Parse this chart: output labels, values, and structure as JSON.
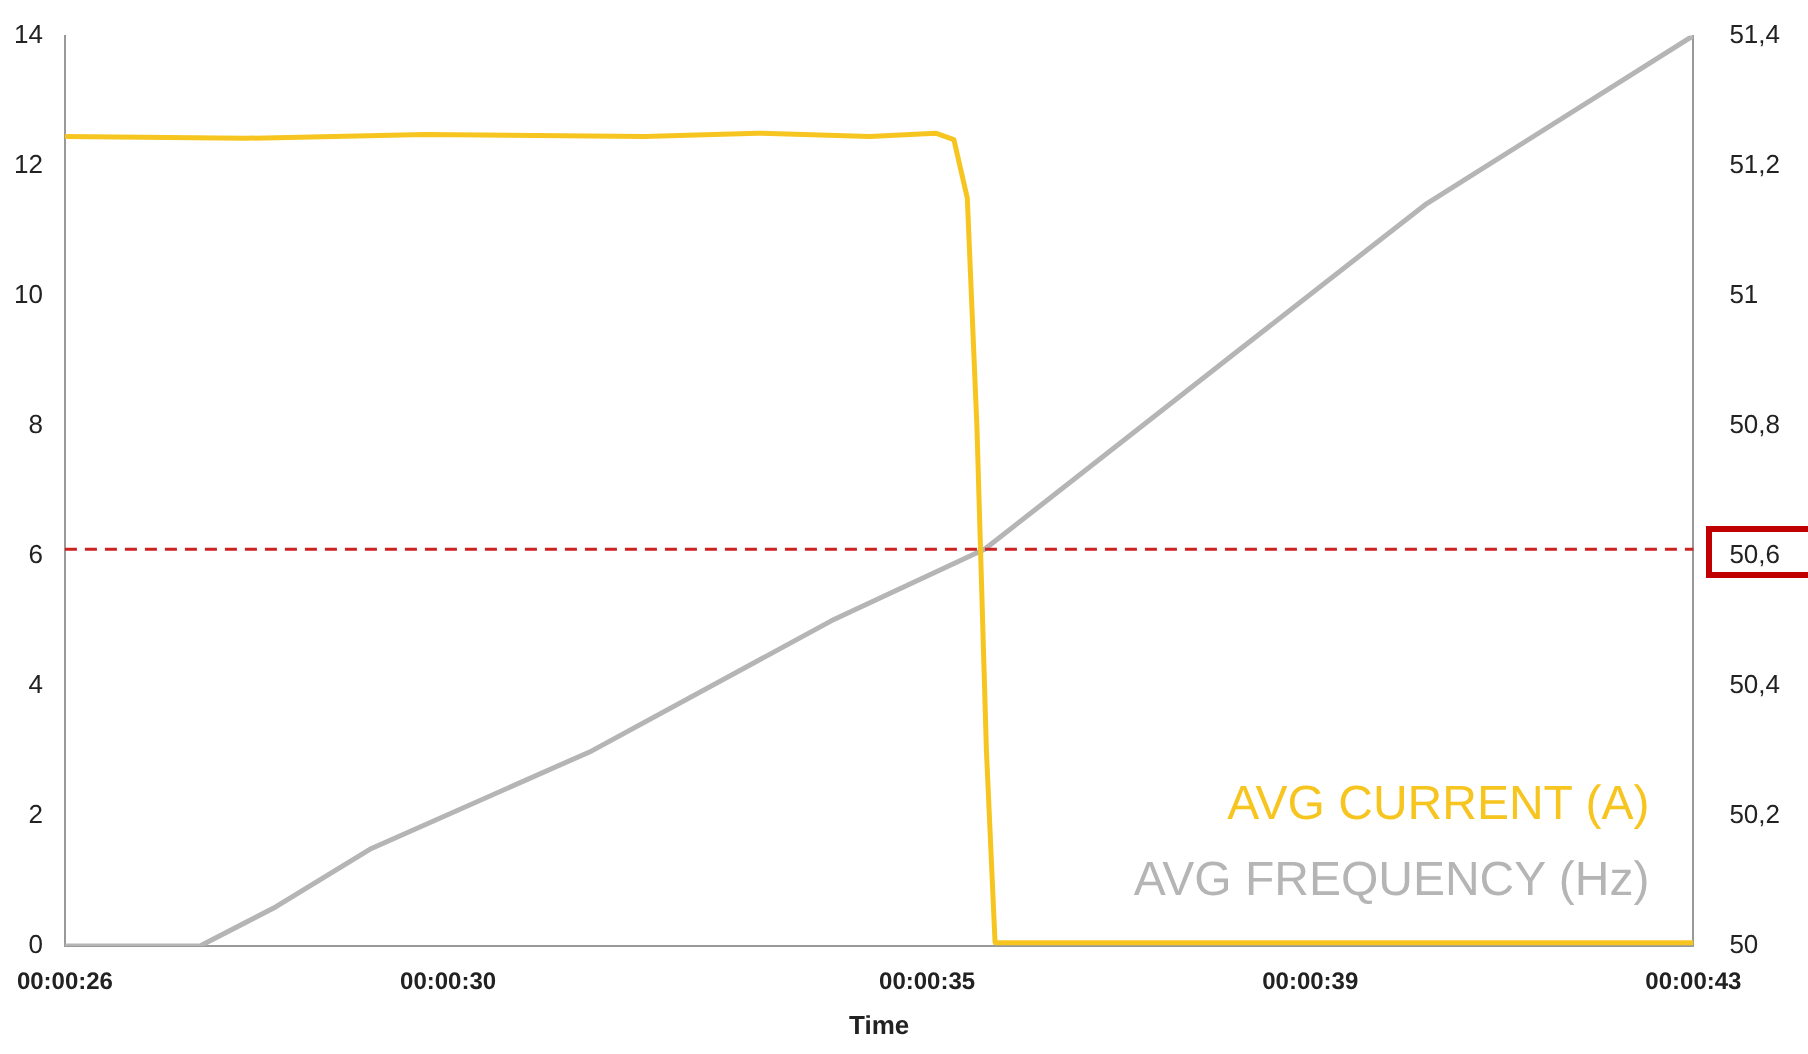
{
  "chart_data": {
    "type": "line",
    "xlabel": "Time",
    "xlim": [
      0.0072222,
      0.0119444
    ],
    "xticks": [
      {
        "value": 0.0072222,
        "label": "00:00:26"
      },
      {
        "value": 0.0083333,
        "label": "00:00:30"
      },
      {
        "value": 0.0097222,
        "label": "00:00:35"
      },
      {
        "value": 0.0108333,
        "label": "00:00:39"
      },
      {
        "value": 0.0119444,
        "label": "00:00:43"
      }
    ],
    "ylim": [
      0,
      14
    ],
    "yticks": [
      0,
      2,
      4,
      6,
      8,
      10,
      12,
      14
    ],
    "y2lim": [
      50,
      51.4
    ],
    "y2ticks": [
      {
        "value": 50,
        "label": "50"
      },
      {
        "value": 50.2,
        "label": "50,2"
      },
      {
        "value": 50.4,
        "label": "50,4"
      },
      {
        "value": 50.6,
        "label": "50,6"
      },
      {
        "value": 50.8,
        "label": "50,8"
      },
      {
        "value": 51,
        "label": "51"
      },
      {
        "value": 51.2,
        "label": "51,2"
      },
      {
        "value": 51.4,
        "label": "51,4"
      }
    ],
    "grid": false,
    "legend": "bottom right",
    "marker": "none",
    "line_style": "solid",
    "ref_lines": [
      {
        "axis": "y2",
        "value": 50.61,
        "color": "#cc2222",
        "line_style": "dashed"
      }
    ],
    "series": [
      {
        "name": "AVG CURRENT (A)",
        "color": "#f7c520",
        "x": [
          0.0072222,
          0.0077444,
          0.0082667,
          0.0089028,
          0.0092306,
          0.0095556,
          0.0097472,
          0.0098,
          0.0098389,
          0.0098667,
          0.0098944,
          0.0099194,
          0.0119444
        ],
        "values": [
          12.45,
          12.42,
          12.48,
          12.45,
          12.5,
          12.45,
          12.5,
          12.4,
          11.5,
          8,
          3,
          0.05,
          0.05
        ]
      },
      {
        "name": "AVG FREQUENCY (Hz)",
        "color": "#b5b5b5",
        "axis": "y2",
        "x": [
          0.0072222,
          0.0076139,
          0.0078333,
          0.0081111,
          0.00875,
          0.0094444,
          0.0098889,
          0.0106111,
          0.0111667,
          0.0119444
        ],
        "values": [
          50,
          50,
          50.06,
          50.15,
          50.3,
          50.5,
          50.61,
          50.91,
          51.14,
          51.4
        ]
      }
    ]
  }
}
